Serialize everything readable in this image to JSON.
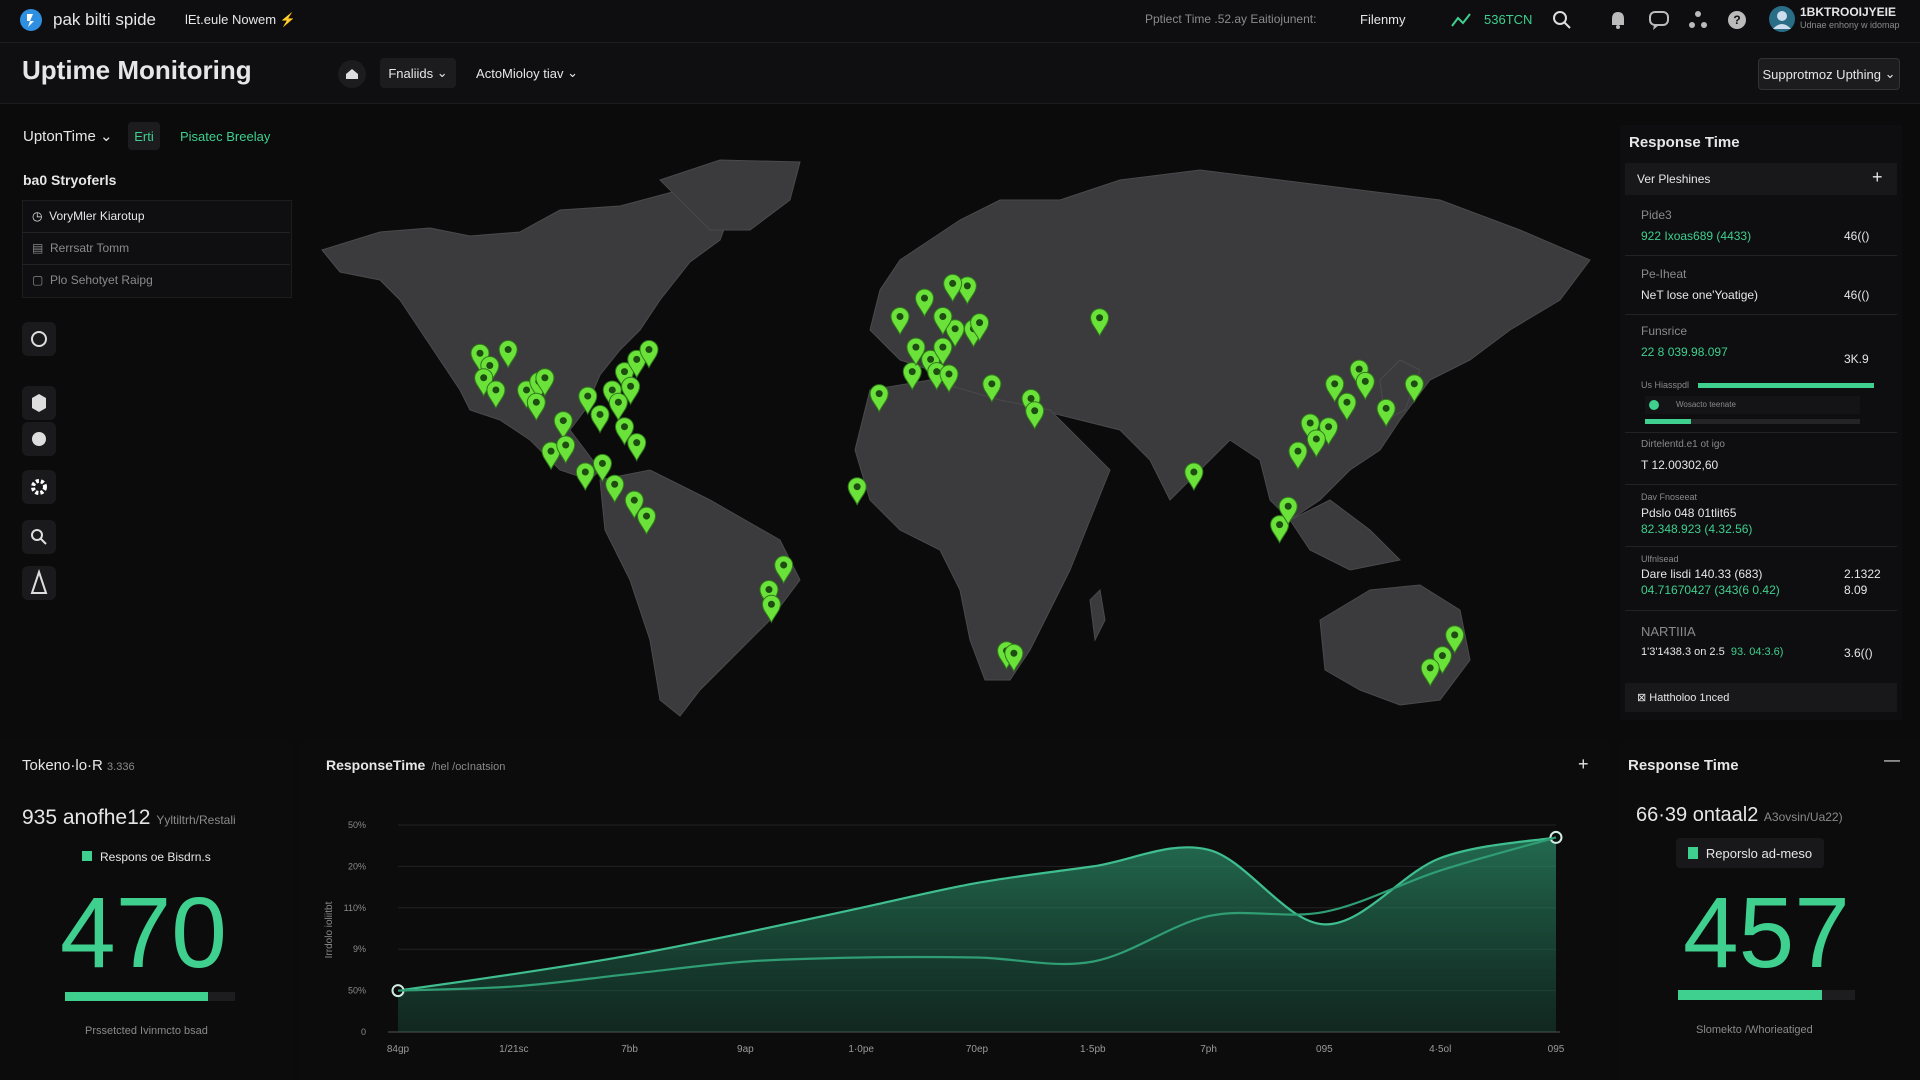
{
  "topbar": {
    "brand": "pak bilti spide",
    "menu": "lEt.eule Nowem ⚡",
    "status": "Pptiect Time .52.ay Eaitiojunent:",
    "filter": "Filenmy",
    "metric": "536TCN",
    "account": "1BKTROOIJYEIE",
    "account_sub": "Udnae enhony w idomap"
  },
  "header": {
    "title": "Uptime Monitoring",
    "buttons": [
      "Fnaliids",
      "ActoMioloy tiav"
    ],
    "right_button": "Supprotmoz Upthing"
  },
  "sidebar": {
    "dropdown": "UptonTime",
    "badge": "Erti",
    "link": "Pisatec Breelay",
    "section": "ba0 Stryoferls",
    "items": [
      "VoryMler Kiarotup",
      "Rerrsatr Tomm",
      "Plo Sehotyet Raipg"
    ]
  },
  "response_panel": {
    "title": "Response Time",
    "box_header": "Ver Pleshines",
    "rows": [
      {
        "label": "Pide3",
        "accent": "922 Ixoas689 (4433)",
        "value": "46(()"
      },
      {
        "label": "Pe-Iheat",
        "line": "NeT lose one'Yoatige)",
        "value": "46(()"
      },
      {
        "label": "Funsrice",
        "accent": "22 8 039.98.097",
        "value": "3K.9"
      },
      {
        "label": "Us Hiasspdl",
        "line": "Wosacto teenate"
      },
      {
        "label": "Dirtelentd.e1 ot igo",
        "line": "T 12.00302,60"
      },
      {
        "label": "Dav Fnoseeat",
        "line": "Pdslo 048 01tlit65",
        "accent": "82.348.923 (4.32.56)"
      },
      {
        "label": "Ulfnlsead",
        "line": "Dare lisdi 140.33 (683)",
        "value": "2.1322",
        "accent": "04.71670427 (343(6 0.42)",
        "value2": "8.09"
      },
      {
        "label": "NARTIIIA",
        "line": "1'3'1438.3 on 2.5",
        "accent": "93. 04:3.6)",
        "value": "3.6(()"
      }
    ],
    "footer": "Hattholoo 1nced"
  },
  "bottom_left": {
    "title": "Tokeno·lo·R",
    "title_note": "3.336",
    "headline": "935 anofhe12",
    "headline_note": "Yyltiltrh/Restali",
    "legend": "Respons oe Bisdrn.s",
    "big": "470",
    "footer": "Prssetcted Ivinmcto bsad"
  },
  "bottom_right": {
    "title": "Response Time",
    "headline": "66·39 ontaal2",
    "headline_note": "A3ovsin/Ua22)",
    "button": "Reporslo ad-meso",
    "big": "457",
    "footer": "Slomekto /Whorieatiged"
  },
  "chart_data": {
    "type": "line",
    "title": "ResponseTime",
    "subtitle": "/hel /ocInatsion",
    "y_label": "Irrdolo ioliitbt",
    "categories": [
      "84gp",
      "1/21sc",
      "7bb",
      "9ap",
      "1·0pe",
      "70ep",
      "1·5pb",
      "7ph",
      "095",
      "4·5ol",
      "095"
    ],
    "series": [
      {
        "color": "#3fbf8f",
        "values": [
          1.0,
          1.4,
          1.85,
          2.4,
          3.0,
          3.6,
          4.0,
          4.4,
          2.6,
          4.2,
          4.7
        ]
      },
      {
        "color": "#2f9e74",
        "values": [
          1.0,
          1.1,
          1.4,
          1.7,
          1.8,
          1.8,
          1.7,
          2.8,
          2.9,
          3.9,
          4.7
        ]
      }
    ],
    "ylim": [
      0,
      5
    ],
    "yticks": [
      0,
      {
        "value": 1,
        "label": "50%"
      },
      {
        "value": 2,
        "label": "9%"
      },
      {
        "value": 3,
        "label": "110%"
      },
      {
        "value": 4,
        "label": "20%"
      },
      {
        "value": 5,
        "label": "50%"
      }
    ],
    "grid": true,
    "area": true
  }
}
